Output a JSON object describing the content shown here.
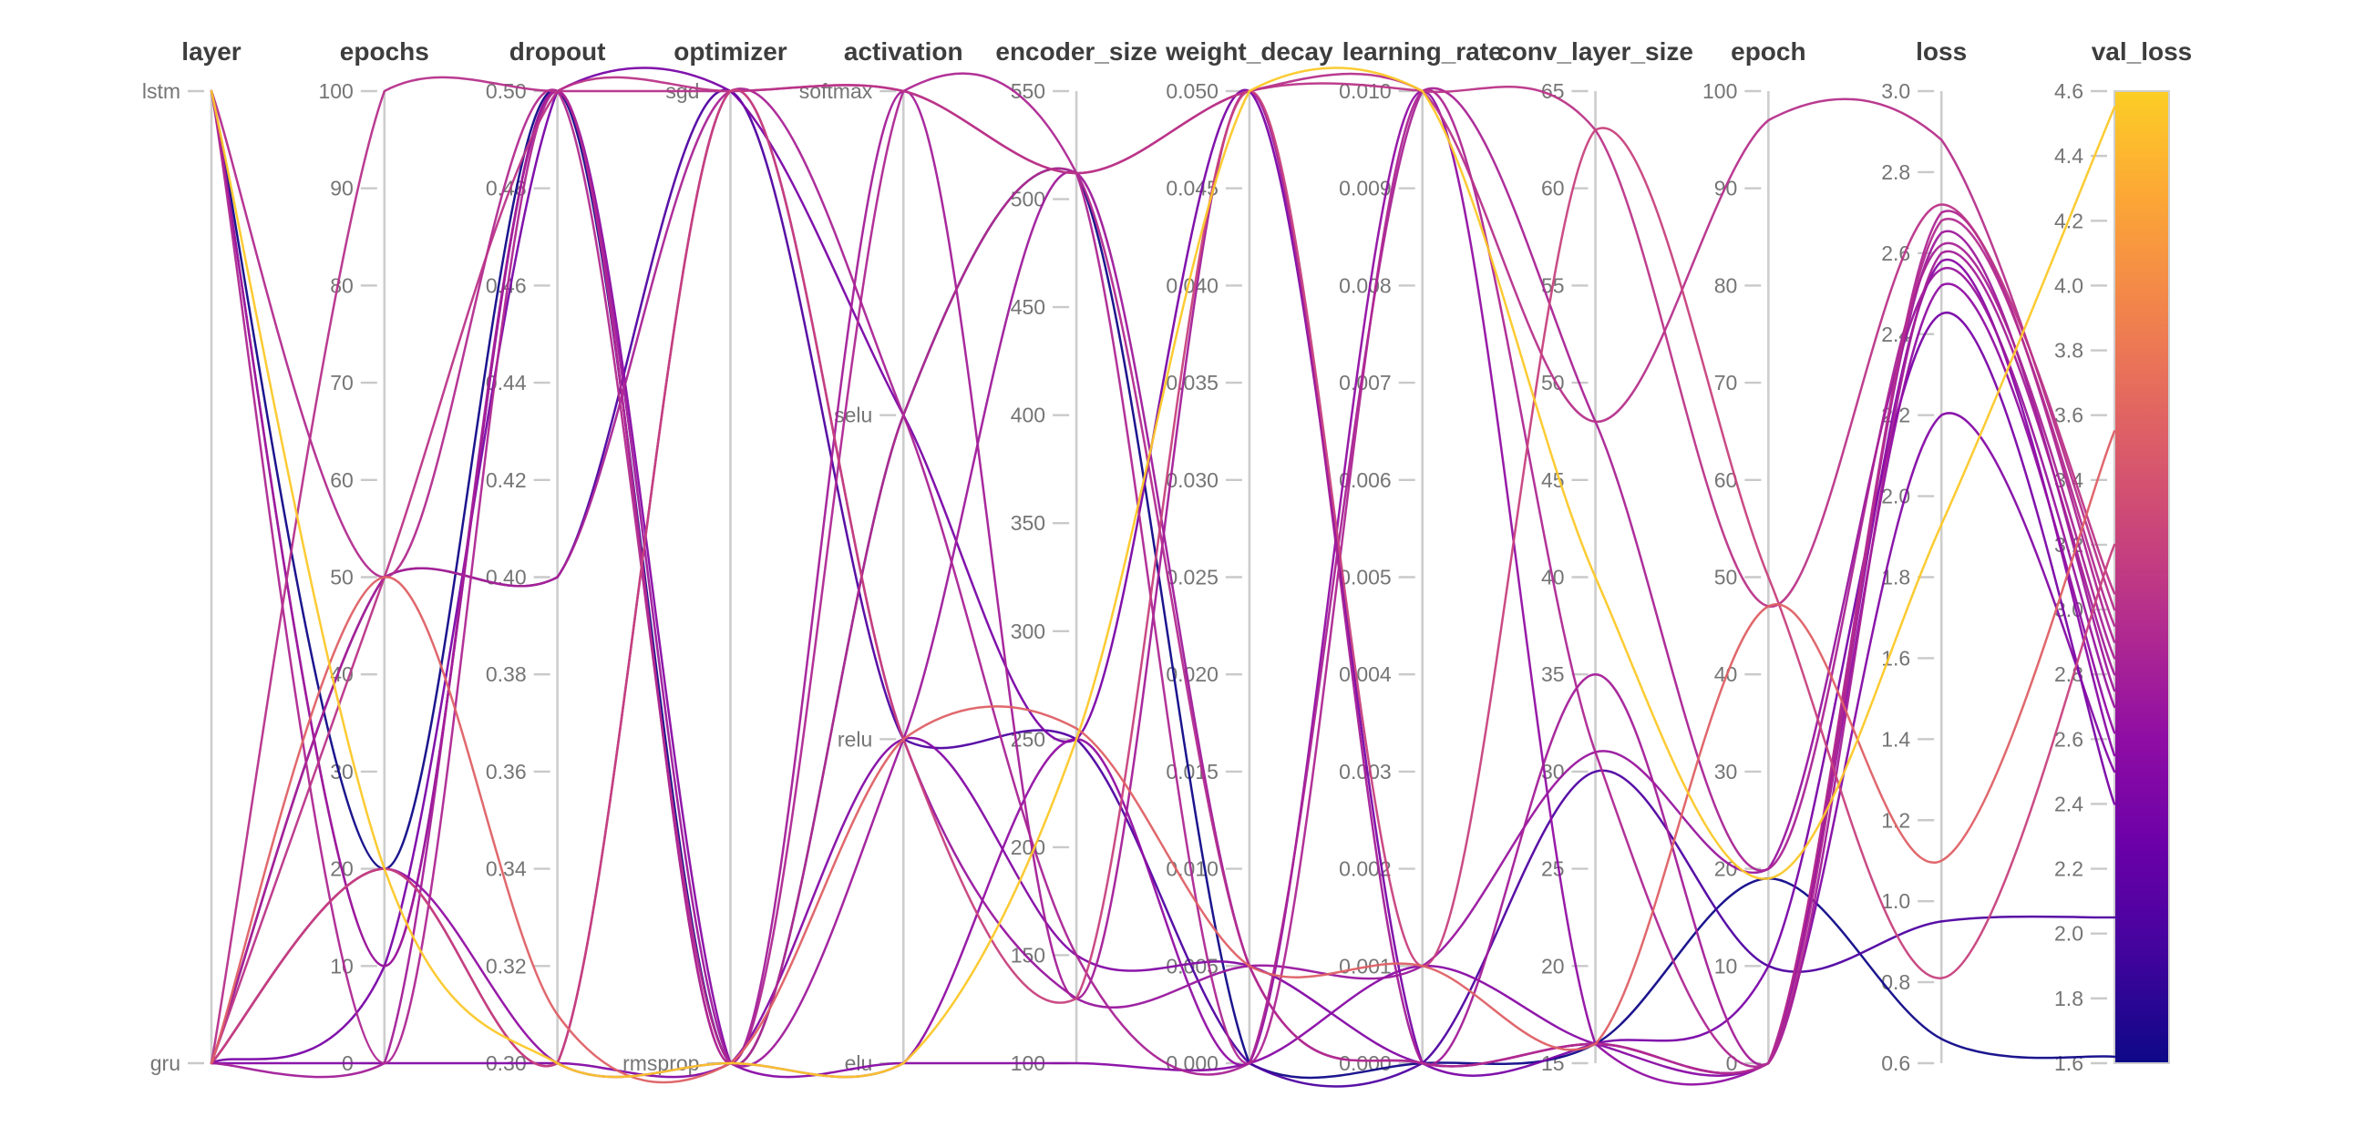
{
  "chart_data": {
    "type": "parallel-coordinates",
    "title": "",
    "legend": "none",
    "grid": false,
    "axes": [
      {
        "name": "layer",
        "title": "layer",
        "type": "categorical",
        "categories": [
          "lstm",
          "gru"
        ]
      },
      {
        "name": "epochs",
        "title": "epochs",
        "type": "numeric",
        "min": 0,
        "max": 100,
        "tick_step": 10,
        "decimals": 0
      },
      {
        "name": "dropout",
        "title": "dropout",
        "type": "numeric",
        "min": 0.3,
        "max": 0.5,
        "tick_step": 0.02,
        "decimals": 2
      },
      {
        "name": "optimizer",
        "title": "optimizer",
        "type": "categorical",
        "categories": [
          "sgd",
          "rmsprop"
        ]
      },
      {
        "name": "activation",
        "title": "activation",
        "type": "categorical",
        "categories": [
          "softmax",
          "selu",
          "relu",
          "elu"
        ]
      },
      {
        "name": "encoder_size",
        "title": "encoder_size",
        "type": "numeric",
        "min": 100,
        "max": 550,
        "tick_step": 50,
        "decimals": 0
      },
      {
        "name": "weight_decay",
        "title": "weight_decay",
        "type": "numeric",
        "min": 0,
        "max": 0.05,
        "tick_step": 0.005,
        "decimals": 3
      },
      {
        "name": "learning_rate",
        "title": "learning_rate",
        "type": "numeric",
        "min": 0,
        "max": 0.01,
        "tick_step": 0.001,
        "decimals": 3
      },
      {
        "name": "conv_layer_size",
        "title": "conv_layer_size",
        "type": "numeric",
        "min": 15,
        "max": 65,
        "tick_step": 5,
        "decimals": 0
      },
      {
        "name": "epoch",
        "title": "epoch",
        "type": "numeric",
        "min": 0,
        "max": 100,
        "tick_step": 10,
        "decimals": 0
      },
      {
        "name": "loss",
        "title": "loss",
        "type": "numeric",
        "min": 0.6,
        "max": 3.0,
        "tick_step": 0.2,
        "decimals": 1
      }
    ],
    "color_axis": {
      "name": "val_loss",
      "title": "val_loss",
      "min": 1.6,
      "max": 4.6,
      "tick_step": 0.2,
      "decimals": 1,
      "colormap": "plasma",
      "position": "right-colorbar"
    },
    "runs": [
      {
        "layer": "lstm",
        "epochs": 20,
        "dropout": 0.3,
        "optimizer": "rmsprop",
        "activation": "elu",
        "encoder_size": 250,
        "weight_decay": 0.05,
        "learning_rate": 0.01,
        "conv_layer_size": 40,
        "epoch": 19,
        "loss": 1.93,
        "val_loss": 4.55
      },
      {
        "layer": "gru",
        "epochs": 50,
        "dropout": 0.31,
        "optimizer": "rmsprop",
        "activation": "relu",
        "encoder_size": 255,
        "weight_decay": 0.005,
        "learning_rate": 0.001,
        "conv_layer_size": 16,
        "epoch": 47,
        "loss": 1.1,
        "val_loss": 3.55
      },
      {
        "layer": "gru",
        "epochs": 20,
        "dropout": 0.3,
        "optimizer": "sgd",
        "activation": "relu",
        "encoder_size": 130,
        "weight_decay": 0.05,
        "learning_rate": 0.001,
        "conv_layer_size": 63,
        "epoch": 50,
        "loss": 0.81,
        "val_loss": 3.2
      },
      {
        "layer": "lstm",
        "epochs": 20,
        "dropout": 0.5,
        "optimizer": "rmsprop",
        "activation": "selu",
        "encoder_size": 512,
        "weight_decay": 0,
        "learning_rate": 0,
        "conv_layer_size": 16,
        "epoch": 19,
        "loss": 0.66,
        "val_loss": 1.62
      },
      {
        "layer": "gru",
        "epochs": 50,
        "dropout": 0.4,
        "optimizer": "sgd",
        "activation": "relu",
        "encoder_size": 250,
        "weight_decay": 0,
        "learning_rate": 0,
        "conv_layer_size": 30,
        "epoch": 10,
        "loss": 0.95,
        "val_loss": 2.05
      },
      {
        "layer": "gru",
        "epochs": 100,
        "dropout": 0.5,
        "optimizer": "sgd",
        "activation": "softmax",
        "encoder_size": 512,
        "weight_decay": 0.05,
        "learning_rate": 0.01,
        "conv_layer_size": 48,
        "epoch": 97,
        "loss": 2.88,
        "val_loss": 3.0
      },
      {
        "layer": "gru",
        "epochs": 50,
        "dropout": 0.5,
        "optimizer": "sgd",
        "activation": "softmax",
        "encoder_size": 512,
        "weight_decay": 0.05,
        "learning_rate": 0.01,
        "conv_layer_size": 63,
        "epoch": 47,
        "loss": 2.72,
        "val_loss": 3.05
      },
      {
        "layer": "lstm",
        "epochs": 50,
        "dropout": 0.5,
        "optimizer": "rmsprop",
        "activation": "selu",
        "encoder_size": 512,
        "weight_decay": 0.005,
        "learning_rate": 0,
        "conv_layer_size": 16,
        "epoch": 0,
        "loss": 2.68,
        "val_loss": 2.95
      },
      {
        "layer": "gru",
        "epochs": 50,
        "dropout": 0.4,
        "optimizer": "sgd",
        "activation": "selu",
        "encoder_size": 150,
        "weight_decay": 0,
        "learning_rate": 0.01,
        "conv_layer_size": 48,
        "epoch": 20,
        "loss": 2.62,
        "val_loss": 2.85
      },
      {
        "layer": "gru",
        "epochs": 0,
        "dropout": 0.5,
        "optimizer": "rmsprop",
        "activation": "softmax",
        "encoder_size": 130,
        "weight_decay": 0.05,
        "learning_rate": 0,
        "conv_layer_size": 35,
        "epoch": 0,
        "loss": 2.6,
        "val_loss": 2.8
      },
      {
        "layer": "gru",
        "epochs": 20,
        "dropout": 0.3,
        "optimizer": "sgd",
        "activation": "relu",
        "encoder_size": 130,
        "weight_decay": 0.005,
        "learning_rate": 0.001,
        "conv_layer_size": 31,
        "epoch": 20,
        "loss": 2.56,
        "val_loss": 2.7
      },
      {
        "layer": "gru",
        "epochs": 20,
        "dropout": 0.3,
        "optimizer": "rmsprop",
        "activation": "elu",
        "encoder_size": 250,
        "weight_decay": 0,
        "learning_rate": 0.01,
        "conv_layer_size": 16,
        "epoch": 0,
        "loss": 2.52,
        "val_loss": 2.62
      },
      {
        "layer": "gru",
        "epochs": 10,
        "dropout": 0.5,
        "optimizer": "sgd",
        "activation": "selu",
        "encoder_size": 250,
        "weight_decay": 0.05,
        "learning_rate": 0,
        "conv_layer_size": 16,
        "epoch": 10,
        "loss": 2.45,
        "val_loss": 2.4
      },
      {
        "layer": "lstm",
        "epochs": 0,
        "dropout": 0.5,
        "optimizer": "rmsprop",
        "activation": "softmax",
        "encoder_size": 512,
        "weight_decay": 0,
        "learning_rate": 0.01,
        "conv_layer_size": 31,
        "epoch": 0,
        "loss": 2.7,
        "val_loss": 2.9
      },
      {
        "layer": "lstm",
        "epochs": 10,
        "dropout": 0.5,
        "optimizer": "rmsprop",
        "activation": "relu",
        "encoder_size": 512,
        "weight_decay": 0.005,
        "learning_rate": 0,
        "conv_layer_size": 16,
        "epoch": 0,
        "loss": 2.65,
        "val_loss": 2.75
      },
      {
        "layer": "lstm",
        "epochs": 10,
        "dropout": 0.5,
        "optimizer": "rmsprop",
        "activation": "elu",
        "encoder_size": 100,
        "weight_decay": 0,
        "learning_rate": 0.001,
        "conv_layer_size": 16,
        "epoch": 0,
        "loss": 2.58,
        "val_loss": 2.55
      },
      {
        "layer": "gru",
        "epochs": 0,
        "dropout": 0.3,
        "optimizer": "rmsprop",
        "activation": "relu",
        "encoder_size": 150,
        "weight_decay": 0.005,
        "learning_rate": 0,
        "conv_layer_size": 16,
        "epoch": 0,
        "loss": 2.2,
        "val_loss": 2.5
      }
    ]
  },
  "style": {
    "background": "#ffffff",
    "axis_line_color": "#cdcdcd",
    "tick_mark_color": "#c9c9c9",
    "tick_label_color": "#757575",
    "axis_title_color": "#3d3d3d",
    "line_width": 2.5,
    "colorbar_border_color": "#cfcfcf",
    "colormap_plasma": [
      "#0d0887",
      "#41049d",
      "#6a00a8",
      "#8f0da4",
      "#b12a90",
      "#cc4778",
      "#e16462",
      "#f2844b",
      "#fca636",
      "#fcce25",
      "#f0f921"
    ],
    "colormap_cap": 0.9
  }
}
